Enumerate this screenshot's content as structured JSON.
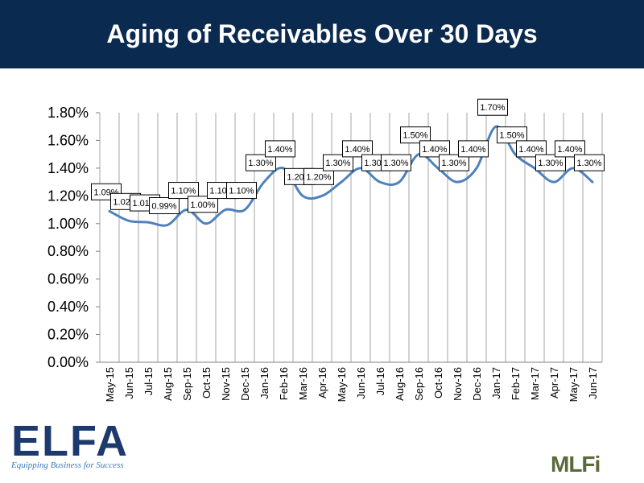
{
  "header": {
    "title": "Aging of Receivables Over 30 Days"
  },
  "colors": {
    "header_bg": "#0b2a4f",
    "line": "#4f81bd",
    "grid": "#a6a6a6"
  },
  "chart_data": {
    "type": "line",
    "title": "Aging of Receivables Over 30 Days",
    "xlabel": "",
    "ylabel": "",
    "ylim": [
      0,
      1.8
    ],
    "yticks": [
      "0.00%",
      "0.20%",
      "0.40%",
      "0.60%",
      "0.80%",
      "1.00%",
      "1.20%",
      "1.40%",
      "1.60%",
      "1.80%"
    ],
    "categories": [
      "May-15",
      "Jun-15",
      "Jul-15",
      "Aug-15",
      "Sep-15",
      "Oct-15",
      "Nov-15",
      "Dec-15",
      "Jan-16",
      "Feb-16",
      "Mar-16",
      "Apr-16",
      "May-16",
      "Jun-16",
      "Jul-16",
      "Aug-16",
      "Sep-16",
      "Oct-16",
      "Nov-16",
      "Dec-16",
      "Jan-17",
      "Feb-17",
      "Mar-17",
      "Apr-17",
      "May-17",
      "Jun-17"
    ],
    "series": [
      {
        "name": "Aging of Receivables Over 30 Days",
        "values": [
          1.09,
          1.02,
          1.01,
          0.99,
          1.1,
          1.0,
          1.1,
          1.1,
          1.3,
          1.4,
          1.2,
          1.2,
          1.3,
          1.4,
          1.3,
          1.3,
          1.5,
          1.4,
          1.3,
          1.4,
          1.7,
          1.5,
          1.4,
          1.3,
          1.4,
          1.3
        ],
        "labels": [
          "1.09%",
          "1.02%",
          "1.01%",
          "0.99%",
          "1.10%",
          "1.00%",
          "1.10%",
          "1.10%",
          "1.30%",
          "1.40%",
          "1.20%",
          "1.20%",
          "1.30%",
          "1.40%",
          "1.30%",
          "1.30%",
          "1.50%",
          "1.40%",
          "1.30%",
          "1.40%",
          "1.70%",
          "1.50%",
          "1.40%",
          "1.30%",
          "1.40%",
          "1.30%"
        ]
      }
    ]
  },
  "logos": {
    "elfa": "ELFA",
    "elfa_tagline": "Equipping Business for Success",
    "mlfi": "MLFi"
  }
}
